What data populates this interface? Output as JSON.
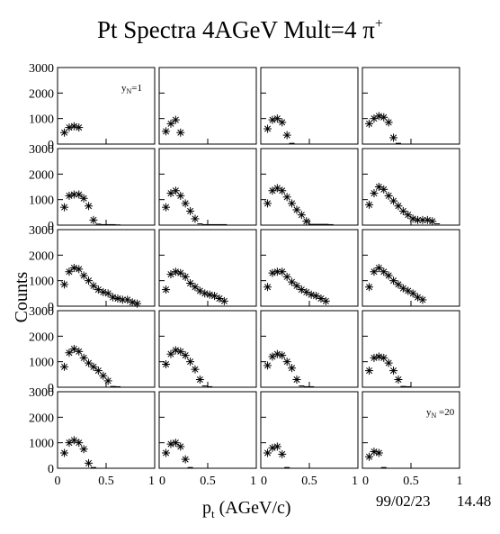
{
  "title": "Pt Spectra 4AGeV Mult=4 π",
  "title_sup": "+",
  "xlabel_main": "p",
  "xlabel_sub": "t",
  "xlabel_rest": " (AGeV/c)",
  "ylabel": "Counts",
  "timestamp_date": "99/02/23",
  "timestamp_time": "14.48",
  "y_ticks": [
    "0",
    "1000",
    "2000",
    "3000"
  ],
  "x_ticks_first": [
    "0",
    "0.5",
    "1"
  ],
  "x_ticks_other": [
    "0",
    "0.5",
    "1"
  ],
  "annotations": [
    {
      "panel": 0,
      "main": "y",
      "sub": "N",
      "rest": "=1"
    },
    {
      "panel": 19,
      "main": "y",
      "sub": "N",
      "rest": " =20"
    }
  ],
  "chart_data": {
    "type": "scatter",
    "marker": "asterisk",
    "rows": 5,
    "cols": 4,
    "xlim": [
      0,
      1
    ],
    "ylim": [
      0,
      3000
    ],
    "panels": [
      {
        "id": 1,
        "x": [
          0.07,
          0.12,
          0.17,
          0.22
        ],
        "y": [
          450,
          650,
          700,
          650
        ]
      },
      {
        "id": 2,
        "x": [
          0.07,
          0.12,
          0.17,
          0.22
        ],
        "y": [
          500,
          800,
          950,
          450
        ]
      },
      {
        "id": 3,
        "x": [
          0.07,
          0.12,
          0.17,
          0.22,
          0.27,
          0.32
        ],
        "y": [
          600,
          950,
          1000,
          850,
          350,
          30
        ]
      },
      {
        "id": 4,
        "x": [
          0.07,
          0.12,
          0.17,
          0.22,
          0.27,
          0.32,
          0.37
        ],
        "y": [
          800,
          1000,
          1100,
          1050,
          850,
          250,
          30
        ]
      },
      {
        "id": 5,
        "x": [
          0.07,
          0.12,
          0.17,
          0.22,
          0.27,
          0.32,
          0.37,
          0.42,
          0.47,
          0.52,
          0.57,
          0.62
        ],
        "y": [
          700,
          1150,
          1200,
          1200,
          1050,
          750,
          200,
          40,
          20,
          20,
          20,
          10
        ]
      },
      {
        "id": 6,
        "x": [
          0.07,
          0.12,
          0.17,
          0.22,
          0.27,
          0.32,
          0.37,
          0.42,
          0.47,
          0.52,
          0.57,
          0.62,
          0.67
        ],
        "y": [
          700,
          1250,
          1350,
          1150,
          850,
          550,
          250,
          50,
          20,
          20,
          20,
          20,
          20
        ]
      },
      {
        "id": 7,
        "x": [
          0.07,
          0.12,
          0.17,
          0.22,
          0.27,
          0.32,
          0.37,
          0.42,
          0.47,
          0.52,
          0.57,
          0.62,
          0.67,
          0.72
        ],
        "y": [
          850,
          1350,
          1450,
          1350,
          1100,
          850,
          600,
          400,
          150,
          30,
          30,
          30,
          30,
          20
        ]
      },
      {
        "id": 8,
        "x": [
          0.07,
          0.12,
          0.17,
          0.22,
          0.27,
          0.32,
          0.37,
          0.42,
          0.47,
          0.52,
          0.57,
          0.62,
          0.67,
          0.72,
          0.77
        ],
        "y": [
          800,
          1250,
          1500,
          1400,
          1150,
          950,
          750,
          550,
          400,
          250,
          200,
          200,
          200,
          150,
          50
        ]
      },
      {
        "id": 9,
        "x": [
          0.07,
          0.12,
          0.17,
          0.22,
          0.27,
          0.32,
          0.37,
          0.42,
          0.47,
          0.52,
          0.57,
          0.62,
          0.67,
          0.72,
          0.77,
          0.82
        ],
        "y": [
          850,
          1350,
          1500,
          1450,
          1200,
          1000,
          800,
          650,
          550,
          500,
          350,
          300,
          250,
          250,
          150,
          100
        ]
      },
      {
        "id": 10,
        "x": [
          0.07,
          0.12,
          0.17,
          0.22,
          0.27,
          0.32,
          0.37,
          0.42,
          0.47,
          0.52,
          0.57,
          0.62,
          0.67
        ],
        "y": [
          650,
          1250,
          1350,
          1300,
          1150,
          900,
          750,
          600,
          500,
          450,
          400,
          300,
          200
        ]
      },
      {
        "id": 11,
        "x": [
          0.07,
          0.12,
          0.17,
          0.22,
          0.27,
          0.32,
          0.37,
          0.42,
          0.47,
          0.52,
          0.57,
          0.62,
          0.67
        ],
        "y": [
          750,
          1300,
          1350,
          1350,
          1150,
          950,
          800,
          650,
          550,
          450,
          400,
          300,
          200
        ]
      },
      {
        "id": 12,
        "x": [
          0.07,
          0.12,
          0.17,
          0.22,
          0.27,
          0.32,
          0.37,
          0.42,
          0.47,
          0.52,
          0.57,
          0.62
        ],
        "y": [
          750,
          1350,
          1500,
          1350,
          1200,
          1000,
          850,
          700,
          600,
          500,
          350,
          250
        ]
      },
      {
        "id": 13,
        "x": [
          0.07,
          0.12,
          0.17,
          0.22,
          0.27,
          0.32,
          0.37,
          0.42,
          0.47,
          0.52,
          0.57,
          0.62
        ],
        "y": [
          800,
          1350,
          1500,
          1400,
          1150,
          950,
          800,
          650,
          450,
          250,
          30,
          20
        ]
      },
      {
        "id": 14,
        "x": [
          0.07,
          0.12,
          0.17,
          0.22,
          0.27,
          0.32,
          0.37,
          0.42,
          0.47,
          0.52
        ],
        "y": [
          900,
          1300,
          1450,
          1400,
          1250,
          1000,
          700,
          300,
          50,
          20
        ]
      },
      {
        "id": 15,
        "x": [
          0.07,
          0.12,
          0.17,
          0.22,
          0.27,
          0.32,
          0.37,
          0.42,
          0.47,
          0.52
        ],
        "y": [
          850,
          1200,
          1300,
          1250,
          1000,
          750,
          300,
          50,
          20,
          20
        ]
      },
      {
        "id": 16,
        "x": [
          0.07,
          0.12,
          0.17,
          0.22,
          0.27,
          0.32,
          0.37,
          0.42,
          0.47
        ],
        "y": [
          650,
          1150,
          1200,
          1150,
          950,
          650,
          300,
          30,
          20
        ]
      },
      {
        "id": 17,
        "x": [
          0.07,
          0.12,
          0.17,
          0.22,
          0.27,
          0.32,
          0.37
        ],
        "y": [
          600,
          1000,
          1100,
          1000,
          750,
          200,
          30
        ]
      },
      {
        "id": 18,
        "x": [
          0.07,
          0.12,
          0.17,
          0.22,
          0.27,
          0.32
        ],
        "y": [
          600,
          950,
          1000,
          850,
          350,
          30
        ]
      },
      {
        "id": 19,
        "x": [
          0.07,
          0.12,
          0.17,
          0.22,
          0.27
        ],
        "y": [
          600,
          800,
          850,
          550,
          30
        ]
      },
      {
        "id": 20,
        "x": [
          0.07,
          0.12,
          0.17,
          0.22
        ],
        "y": [
          450,
          650,
          600,
          30
        ]
      }
    ]
  }
}
